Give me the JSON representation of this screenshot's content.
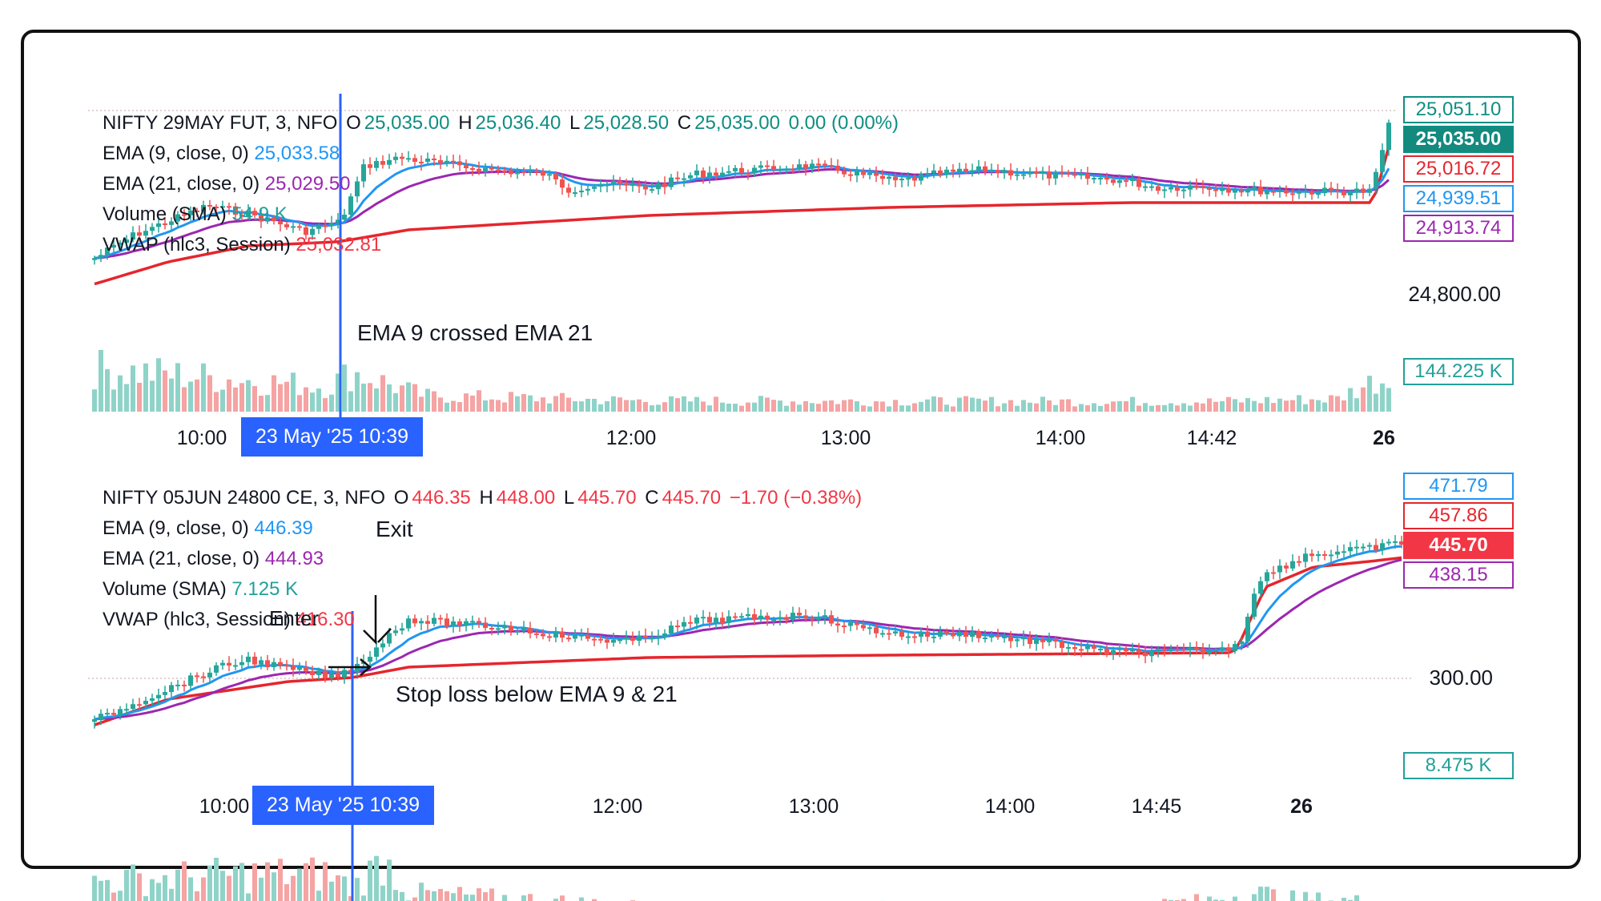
{
  "colors": {
    "up": "#26a69a",
    "down": "#ef5350",
    "vol_up": "#8fd3c8",
    "vol_down": "#f5a3a3",
    "ema9": "#2196f3",
    "ema21": "#9c27b0",
    "vwap": "#e5262d",
    "crosshair": "#2962ff"
  },
  "charts": [
    {
      "legend": {
        "symbol": "NIFTY 29MAY FUT, 3, NFO",
        "o_label": "O",
        "o": "25,035.00",
        "h_label": "H",
        "h": "25,036.40",
        "l_label": "L",
        "l": "25,028.50",
        "c_label": "C",
        "c": "25,035.00",
        "change": "0.00 (0.00%)",
        "ema9_label": "EMA (9, close, 0)",
        "ema9": "25,033.58",
        "ema21_label": "EMA (21, close, 0)",
        "ema21": "25,029.50",
        "vol_label": "Volume (SMA)",
        "vol": "54.9 K",
        "vwap_label": "VWAP (hlc3, Session)",
        "vwap": "25,032.81"
      },
      "price_tags": [
        "25,051.10",
        "25,035.00",
        "25,016.72",
        "24,939.51",
        "24,913.74"
      ],
      "axis_labels": [
        "24,800.00",
        "144.225 K"
      ],
      "x_ticks": [
        "10:00",
        "12:00",
        "13:00",
        "14:00",
        "14:42",
        "26"
      ],
      "crosshair_label": "23 May '25    10:39",
      "annotation": "EMA 9 crossed EMA 21"
    },
    {
      "legend": {
        "symbol": "NIFTY 05JUN 24800 CE, 3, NFO",
        "o_label": "O",
        "o": "446.35",
        "h_label": "H",
        "h": "448.00",
        "l_label": "L",
        "l": "445.70",
        "c_label": "C",
        "c": "445.70",
        "change": "−1.70 (−0.38%)",
        "ema9_label": "EMA (9, close, 0)",
        "ema9": "446.39",
        "ema21_label": "EMA (21, close, 0)",
        "ema21": "444.93",
        "vol_label": "Volume (SMA)",
        "vol": "7.125 K",
        "vwap_label": "VWAP (hlc3, Session)",
        "vwap": "416.30"
      },
      "price_tags": [
        "471.79",
        "457.86",
        "445.70",
        "438.15"
      ],
      "axis_labels": [
        "300.00",
        "8.475 K"
      ],
      "x_ticks": [
        "10:00",
        "12:00",
        "13:00",
        "14:00",
        "14:45",
        "26"
      ],
      "crosshair_label": "23 May '25    10:39",
      "annotations": {
        "exit": "Exit",
        "enter": "Enter",
        "stop": "Stop loss below EMA 9 & 21"
      }
    }
  ],
  "chart_data": [
    {
      "type": "candlestick",
      "title": "NIFTY 29MAY FUT, 3, NFO",
      "indicators": [
        "EMA 9",
        "EMA 21",
        "VWAP",
        "Volume"
      ],
      "last": {
        "open": 25035.0,
        "high": 25036.4,
        "low": 25028.5,
        "close": 25035.0
      },
      "ema9": 25033.58,
      "ema21": 25029.5,
      "vwap": 25032.81,
      "volume_sma": "54.9 K",
      "price_levels": [
        25051.1,
        25035.0,
        25016.72,
        24939.51,
        24913.74,
        24800.0
      ],
      "volume_level": "144.225 K",
      "x_ticks": [
        "10:00",
        "12:00",
        "13:00",
        "14:00",
        "14:42",
        "26"
      ],
      "cross_time": "23 May '25 10:39"
    },
    {
      "type": "candlestick",
      "title": "NIFTY 05JUN 24800 CE, 3, NFO",
      "indicators": [
        "EMA 9",
        "EMA 21",
        "VWAP",
        "Volume"
      ],
      "last": {
        "open": 446.35,
        "high": 448.0,
        "low": 445.7,
        "close": 445.7
      },
      "change": -1.7,
      "change_pct": -0.38,
      "ema9": 446.39,
      "ema21": 444.93,
      "vwap": 416.3,
      "volume_sma": "7.125 K",
      "price_levels": [
        471.79,
        457.86,
        445.7,
        438.15,
        300.0
      ],
      "volume_level": "8.475 K",
      "x_ticks": [
        "10:00",
        "12:00",
        "13:00",
        "14:00",
        "14:45",
        "26"
      ],
      "cross_time": "23 May '25 10:39"
    }
  ]
}
